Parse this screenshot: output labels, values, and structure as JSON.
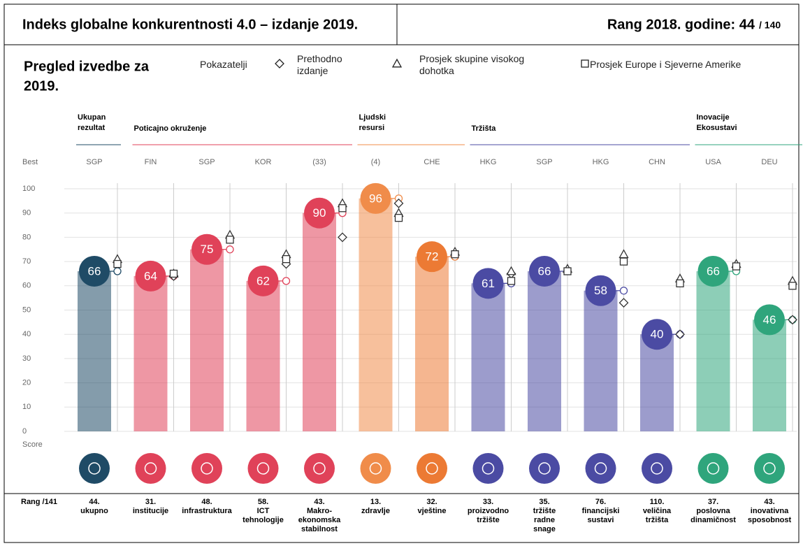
{
  "header": {
    "title": "Indeks globalne konkurentnosti 4.0 – izdanje 2019.",
    "rank_label": "Rang 2018. godine: 44",
    "rank_total": "/ 140"
  },
  "chart_data": {
    "type": "bar",
    "title_lines": [
      "Pregled izvedbe za",
      "2019."
    ],
    "legend_heading": "Pokazatelji",
    "best_label": "Best",
    "score_label": "Score",
    "rank_heading": "Rang /141",
    "groups": [
      {
        "name": [
          "Ukupan",
          "rezultat"
        ],
        "color": "#1f4b66"
      },
      {
        "name": [
          "Poticajno okruženje"
        ],
        "color": "#e04259"
      },
      {
        "name": [
          "Ljudski",
          "resursi"
        ],
        "color": "#f08c4a"
      },
      {
        "name": [
          "Tržišta"
        ],
        "color": "#4b4ba3"
      },
      {
        "name": [
          "Inovacije",
          "Ekosustavi"
        ],
        "color": "#2fa57c"
      }
    ],
    "best": [
      "SGP",
      "FIN",
      "SGP",
      "KOR",
      "(33)",
      "(4)",
      "CHE",
      "HKG",
      "SGP",
      "HKG",
      "CHN",
      "USA",
      "DEU"
    ],
    "categories": [
      [
        "ukupno"
      ],
      [
        "institucije"
      ],
      [
        "infrastruktura"
      ],
      [
        "ICT",
        "tehnologije"
      ],
      [
        "Makro-",
        "ekonomska",
        "stabilnost"
      ],
      [
        "zdravlje"
      ],
      [
        "vještine"
      ],
      [
        "proizvodno",
        "tržište"
      ],
      [
        "tržište",
        "radne",
        "snage"
      ],
      [
        "financijski",
        "sustavi"
      ],
      [
        "veličina",
        "tržišta"
      ],
      [
        "poslovna",
        "dinamičnost"
      ],
      [
        "inovativna",
        "sposobnost"
      ]
    ],
    "ranks": [
      "44.",
      "31.",
      "48.",
      "58.",
      "43.",
      "13.",
      "32.",
      "33.",
      "35.",
      "76.",
      "110.",
      "37.",
      "43."
    ],
    "values": [
      66,
      64,
      75,
      62,
      90,
      96,
      72,
      61,
      66,
      58,
      40,
      66,
      46
    ],
    "colors": [
      "#1f4b66",
      "#e04259",
      "#e04259",
      "#e04259",
      "#e04259",
      "#f08c4a",
      "#ec7a34",
      "#4b4ba3",
      "#4b4ba3",
      "#4b4ba3",
      "#4b4ba3",
      "#2fa57c",
      "#2fa57c"
    ],
    "series": [
      {
        "name": "Prethodno izdanje",
        "marker": "diamond",
        "values": [
          null,
          64,
          null,
          69,
          80,
          94,
          null,
          65,
          null,
          53,
          40,
          null,
          46
        ]
      },
      {
        "name": "Prosjek skupine visokog dohotka",
        "marker": "triangle",
        "values": [
          71,
          65,
          81,
          73,
          94,
          90,
          74,
          66,
          67,
          73,
          63,
          69,
          62
        ]
      },
      {
        "name": "Prosjek Europe i Sjeverne Amerike",
        "marker": "square",
        "values": [
          69,
          65,
          79,
          71,
          92,
          88,
          73,
          62,
          66,
          70,
          61,
          68,
          60
        ]
      }
    ],
    "ylim": [
      0,
      100
    ],
    "yticks": [
      0,
      10,
      20,
      30,
      40,
      50,
      60,
      70,
      80,
      90,
      100
    ],
    "grid": true
  }
}
